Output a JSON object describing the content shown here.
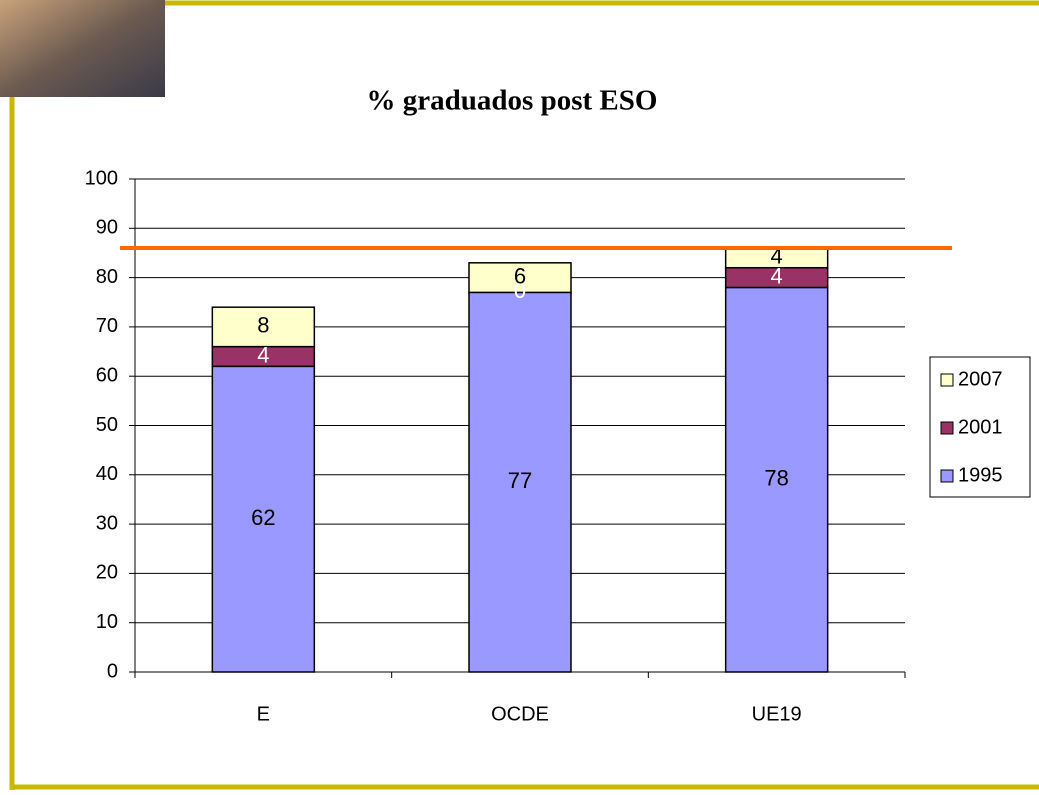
{
  "chart_data": {
    "type": "stacked-bar",
    "title": "% graduados post ESO",
    "categories": [
      "E",
      "OCDE",
      "UE19"
    ],
    "series": [
      {
        "name": "1995",
        "color": "#9999ff",
        "label_color": "#000000",
        "values": [
          62,
          77,
          78
        ]
      },
      {
        "name": "2001",
        "color": "#993366",
        "label_color": "#ffffff",
        "values": [
          4,
          0,
          4
        ]
      },
      {
        "name": "2007",
        "color": "#ffffcc",
        "label_color": "#000000",
        "values": [
          8,
          6,
          4
        ]
      }
    ],
    "ylim": [
      0,
      100
    ],
    "yticks": [
      0,
      10,
      20,
      30,
      40,
      50,
      60,
      70,
      80,
      90,
      100
    ],
    "grid": true,
    "legend": "right",
    "reference_line": {
      "value": 86,
      "color": "#ff6600"
    }
  }
}
